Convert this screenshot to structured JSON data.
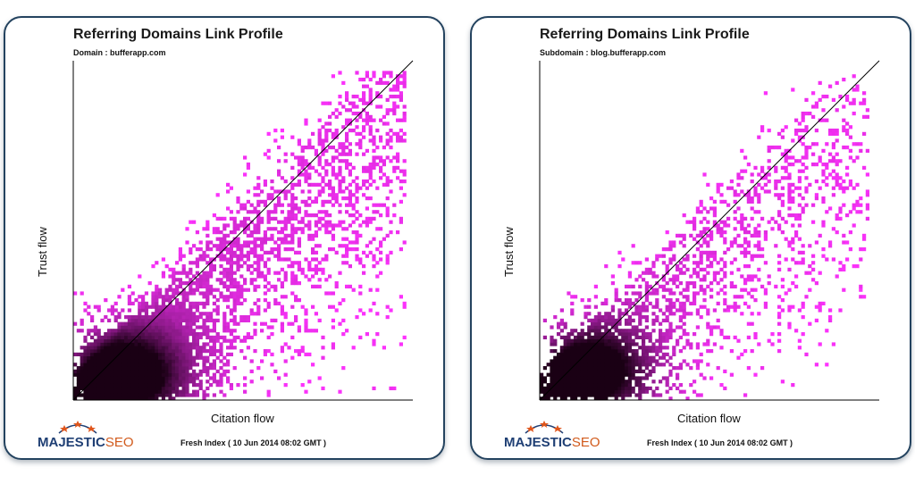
{
  "panels": [
    {
      "title": "Referring Domains Link Profile",
      "subtitle": "Domain : bufferapp.com",
      "xlabel": "Citation flow",
      "ylabel": "Trust flow",
      "footer": "Fresh Index ( 10 Jun 2014 08:02 GMT )",
      "logo": {
        "main": "MAJESTIC",
        "suffix": "SEO"
      }
    },
    {
      "title": "Referring Domains Link Profile",
      "subtitle": "Subdomain : blog.bufferapp.com",
      "xlabel": "Citation flow",
      "ylabel": "Trust flow",
      "footer": "Fresh Index ( 10 Jun 2014 08:02 GMT )",
      "logo": {
        "main": "MAJESTIC",
        "suffix": "SEO"
      }
    }
  ],
  "chart_data": [
    {
      "type": "heatmap",
      "title": "Referring Domains Link Profile",
      "subtitle": "Domain : bufferapp.com",
      "xlabel": "Citation flow",
      "ylabel": "Trust flow",
      "xlim": [
        0,
        100
      ],
      "ylim": [
        0,
        100
      ],
      "diagonal_reference_line": true,
      "grid": false,
      "colors": {
        "low_density": "#ff33ff",
        "high_density": "#1a0014",
        "diagonal": "#000000"
      },
      "density_model": {
        "cf_peak": 14,
        "tf_peak": 6,
        "cf_extent_max": 98,
        "tf_extent_max": 97,
        "band_slope": 0.95,
        "band_width": 12,
        "spread": "dense"
      }
    },
    {
      "type": "heatmap",
      "title": "Referring Domains Link Profile",
      "subtitle": "Subdomain : blog.bufferapp.com",
      "xlabel": "Citation flow",
      "ylabel": "Trust flow",
      "xlim": [
        0,
        100
      ],
      "ylim": [
        0,
        100
      ],
      "diagonal_reference_line": true,
      "grid": false,
      "colors": {
        "low_density": "#ff33ff",
        "high_density": "#1a0014",
        "diagonal": "#000000"
      },
      "density_model": {
        "cf_peak": 13,
        "tf_peak": 7,
        "cf_extent_max": 97,
        "tf_extent_max": 97,
        "band_slope": 0.92,
        "band_width": 10,
        "spread": "sparse"
      }
    }
  ]
}
